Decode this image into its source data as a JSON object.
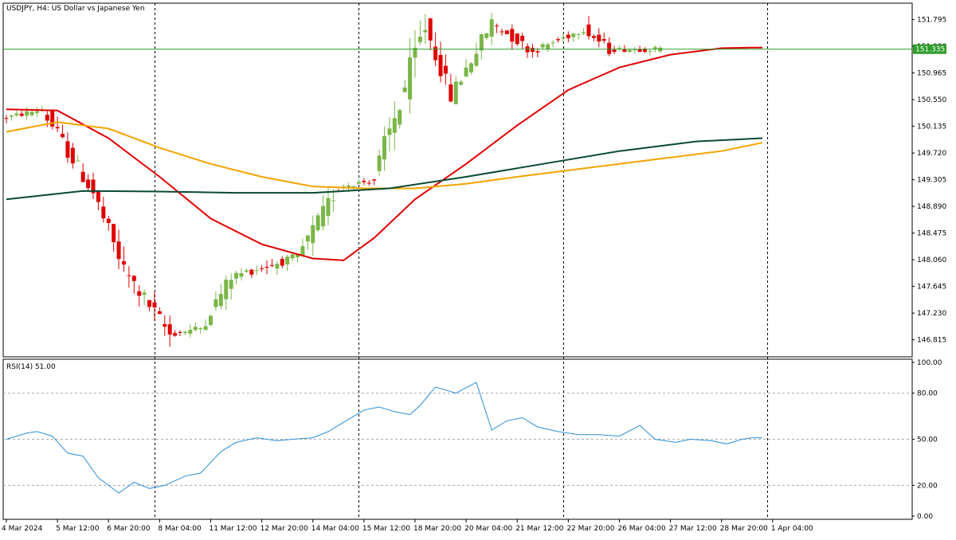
{
  "chart_data": {
    "type": "candlestick",
    "symbol_label": "USDJPY, H4:  US Dollar vs Japanese Yen",
    "price_axis": {
      "ylim": [
        146.55,
        152.05
      ],
      "ticks": [
        "151.795",
        "151.380",
        "150.965",
        "150.550",
        "150.135",
        "149.720",
        "149.305",
        "148.890",
        "148.475",
        "148.060",
        "147.645",
        "147.230",
        "146.815"
      ],
      "current_price": 151.335,
      "current_price_label": "151.335"
    },
    "time_axis": {
      "labels": [
        "4 Mar 2024",
        "5 Mar 12:00",
        "6 Mar 20:00",
        "8 Mar 04:00",
        "11 Mar 12:00",
        "12 Mar 20:00",
        "14 Mar 04:00",
        "15 Mar 12:00",
        "18 Mar 20:00",
        "20 Mar 04:00",
        "21 Mar 12:00",
        "22 Mar 20:00",
        "26 Mar 04:00",
        "27 Mar 12:00",
        "28 Mar 20:00",
        "1 Apr 04:00"
      ]
    },
    "period_separators": [
      29,
      69,
      109,
      149
    ],
    "ohlc_segments": [
      {
        "n": 8,
        "start": 150.25,
        "end": 150.4,
        "low": 150.1,
        "high": 150.6
      },
      {
        "n": 10,
        "start": 150.4,
        "end": 149.1,
        "low": 149.0,
        "high": 150.4
      },
      {
        "n": 6,
        "start": 149.1,
        "end": 147.9,
        "low": 147.6,
        "high": 149.2
      },
      {
        "n": 9,
        "start": 147.9,
        "end": 146.9,
        "low": 146.65,
        "high": 148.1
      },
      {
        "n": 6,
        "start": 146.9,
        "end": 147.0,
        "low": 146.68,
        "high": 147.25
      },
      {
        "n": 6,
        "start": 147.0,
        "end": 147.8,
        "low": 147.0,
        "high": 148.2
      },
      {
        "n": 13,
        "start": 147.8,
        "end": 148.1,
        "low": 147.4,
        "high": 148.15
      },
      {
        "n": 8,
        "start": 148.1,
        "end": 149.2,
        "low": 147.9,
        "high": 149.35
      },
      {
        "n": 7,
        "start": 149.2,
        "end": 149.3,
        "low": 148.9,
        "high": 149.4
      },
      {
        "n": 10,
        "start": 149.3,
        "end": 151.7,
        "low": 149.3,
        "high": 151.9
      },
      {
        "n": 5,
        "start": 151.7,
        "end": 150.6,
        "low": 150.3,
        "high": 151.85
      },
      {
        "n": 8,
        "start": 150.6,
        "end": 151.75,
        "low": 150.5,
        "high": 151.9
      },
      {
        "n": 8,
        "start": 151.75,
        "end": 151.3,
        "low": 150.9,
        "high": 151.85
      },
      {
        "n": 10,
        "start": 151.3,
        "end": 151.65,
        "low": 151.2,
        "high": 151.8
      },
      {
        "n": 5,
        "start": 151.65,
        "end": 151.33,
        "low": 151.0,
        "high": 151.95
      },
      {
        "n": 10,
        "start": 151.33,
        "end": 151.335,
        "low": 151.05,
        "high": 151.5
      }
    ],
    "moving_averages": [
      {
        "color": "#e00000",
        "width": 2,
        "points": [
          [
            0,
            150.4
          ],
          [
            10,
            150.38
          ],
          [
            20,
            149.95
          ],
          [
            30,
            149.35
          ],
          [
            40,
            148.7
          ],
          [
            50,
            148.3
          ],
          [
            60,
            148.08
          ],
          [
            66,
            148.05
          ],
          [
            72,
            148.4
          ],
          [
            80,
            149.0
          ],
          [
            90,
            149.55
          ],
          [
            100,
            150.15
          ],
          [
            110,
            150.7
          ],
          [
            120,
            151.05
          ],
          [
            130,
            151.25
          ],
          [
            140,
            151.35
          ],
          [
            146,
            151.36
          ],
          [
            148,
            151.36
          ]
        ]
      },
      {
        "color": "#f5a300",
        "width": 2,
        "points": [
          [
            0,
            150.05
          ],
          [
            10,
            150.2
          ],
          [
            20,
            150.1
          ],
          [
            30,
            149.8
          ],
          [
            40,
            149.55
          ],
          [
            50,
            149.35
          ],
          [
            60,
            149.2
          ],
          [
            70,
            149.17
          ],
          [
            80,
            149.17
          ],
          [
            90,
            149.24
          ],
          [
            100,
            149.35
          ],
          [
            110,
            149.45
          ],
          [
            120,
            149.55
          ],
          [
            130,
            149.65
          ],
          [
            140,
            149.75
          ],
          [
            148,
            149.88
          ]
        ]
      },
      {
        "color": "#0a4a32",
        "width": 2,
        "points": [
          [
            0,
            149.0
          ],
          [
            15,
            149.13
          ],
          [
            30,
            149.12
          ],
          [
            45,
            149.1
          ],
          [
            60,
            149.1
          ],
          [
            75,
            149.17
          ],
          [
            90,
            149.35
          ],
          [
            105,
            149.55
          ],
          [
            120,
            149.75
          ],
          [
            135,
            149.9
          ],
          [
            148,
            149.95
          ]
        ]
      }
    ],
    "rsi": {
      "label": "RSI(14) 51.00",
      "ticks": [
        "100.00",
        "80.00",
        "50.00",
        "20.00",
        "0.00"
      ],
      "levels": [
        80,
        50,
        20
      ],
      "color": "#2b8fd8",
      "points": [
        [
          0,
          50
        ],
        [
          4,
          54
        ],
        [
          6,
          55
        ],
        [
          9,
          52
        ],
        [
          12,
          41
        ],
        [
          15,
          39
        ],
        [
          18,
          25
        ],
        [
          22,
          15
        ],
        [
          25,
          22
        ],
        [
          28,
          18
        ],
        [
          31,
          20
        ],
        [
          35,
          26
        ],
        [
          38,
          28
        ],
        [
          42,
          42
        ],
        [
          45,
          48
        ],
        [
          49,
          51
        ],
        [
          53,
          49
        ],
        [
          56,
          50
        ],
        [
          60,
          51
        ],
        [
          63,
          55
        ],
        [
          67,
          63
        ],
        [
          70,
          69
        ],
        [
          73,
          71
        ],
        [
          76,
          68
        ],
        [
          79,
          66
        ],
        [
          81,
          72
        ],
        [
          84,
          84
        ],
        [
          88,
          80
        ],
        [
          92,
          87
        ],
        [
          95,
          56
        ],
        [
          98,
          62
        ],
        [
          101,
          64
        ],
        [
          104,
          58
        ],
        [
          108,
          55
        ],
        [
          112,
          53
        ],
        [
          116,
          53
        ],
        [
          120,
          52
        ],
        [
          124,
          59
        ],
        [
          127,
          50
        ],
        [
          131,
          48
        ],
        [
          134,
          50
        ],
        [
          138,
          49
        ],
        [
          141,
          47
        ],
        [
          144,
          50
        ],
        [
          146,
          51
        ],
        [
          148,
          51
        ]
      ]
    }
  }
}
